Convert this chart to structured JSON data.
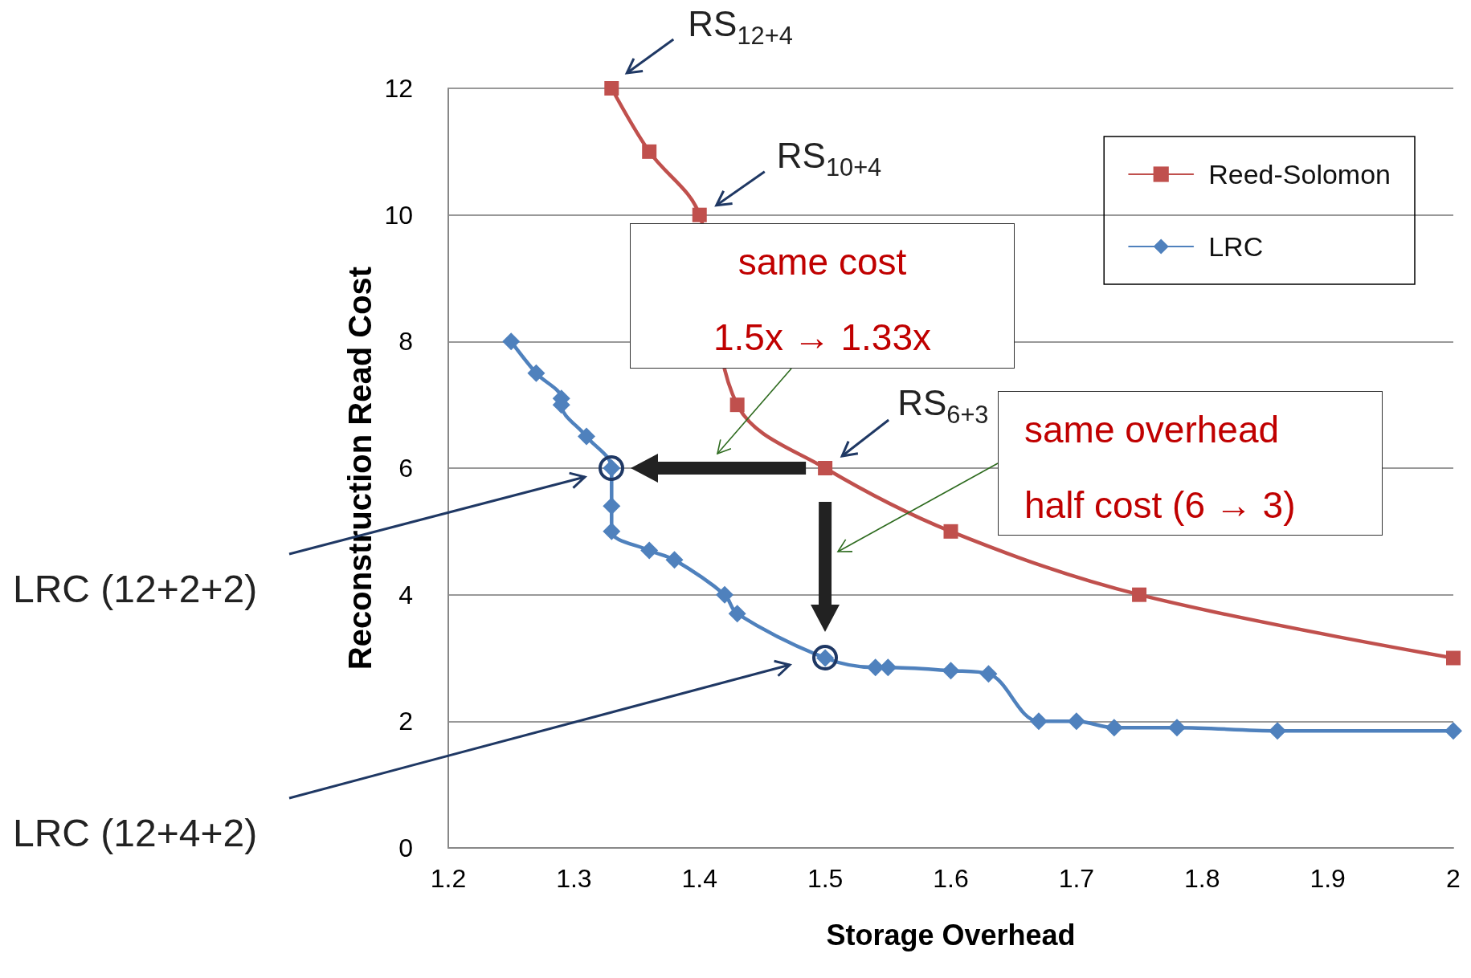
{
  "chart_data": {
    "type": "line",
    "xlabel": "Storage Overhead",
    "ylabel": "Reconstruction Read Cost",
    "xlim": [
      1.2,
      2
    ],
    "xticks": [
      1.2,
      1.3,
      1.4,
      1.5,
      1.6,
      1.7,
      1.8,
      1.9,
      2
    ],
    "ylim": [
      0,
      12
    ],
    "yticks": [
      0,
      2,
      4,
      6,
      8,
      10,
      12
    ],
    "grid": "y",
    "legend": "top right",
    "line_style": "solid",
    "series": [
      {
        "name": "Reed-Solomon",
        "color": "#c0504d",
        "marker": "square",
        "x": [
          1.33,
          1.36,
          1.4,
          1.43,
          1.5,
          1.6,
          1.75,
          2
        ],
        "values": [
          12,
          11,
          10,
          7,
          6,
          5,
          4,
          3
        ]
      },
      {
        "name": "LRC",
        "color": "#4f81bd",
        "marker": "diamond",
        "x": [
          1.25,
          1.27,
          1.29,
          1.29,
          1.31,
          1.33,
          1.33,
          1.33,
          1.36,
          1.38,
          1.42,
          1.43,
          1.5,
          1.54,
          1.55,
          1.6,
          1.63,
          1.67,
          1.7,
          1.73,
          1.78,
          1.86,
          2
        ],
        "values": [
          8,
          7.5,
          7.1,
          7,
          6.5,
          6,
          5.4,
          5,
          4.7,
          4.55,
          4,
          3.7,
          3,
          2.85,
          2.85,
          2.8,
          2.75,
          2,
          2,
          1.9,
          1.9,
          1.85,
          1.85
        ]
      }
    ],
    "annotations": [
      {
        "text": "RS$_{12+4}$",
        "x": 1.33,
        "y": 12
      },
      {
        "text": "RS$_{10+4}$",
        "x": 1.4,
        "y": 10
      },
      {
        "text": "RS$_{6+3}$",
        "x": 1.5,
        "y": 6
      },
      "LRC (12+2+2)",
      "LRC (12+4+2)",
      "same cost\n1.5x → 1.33x",
      "same overhead\nhalf cost (6 → 3)"
    ]
  }
}
